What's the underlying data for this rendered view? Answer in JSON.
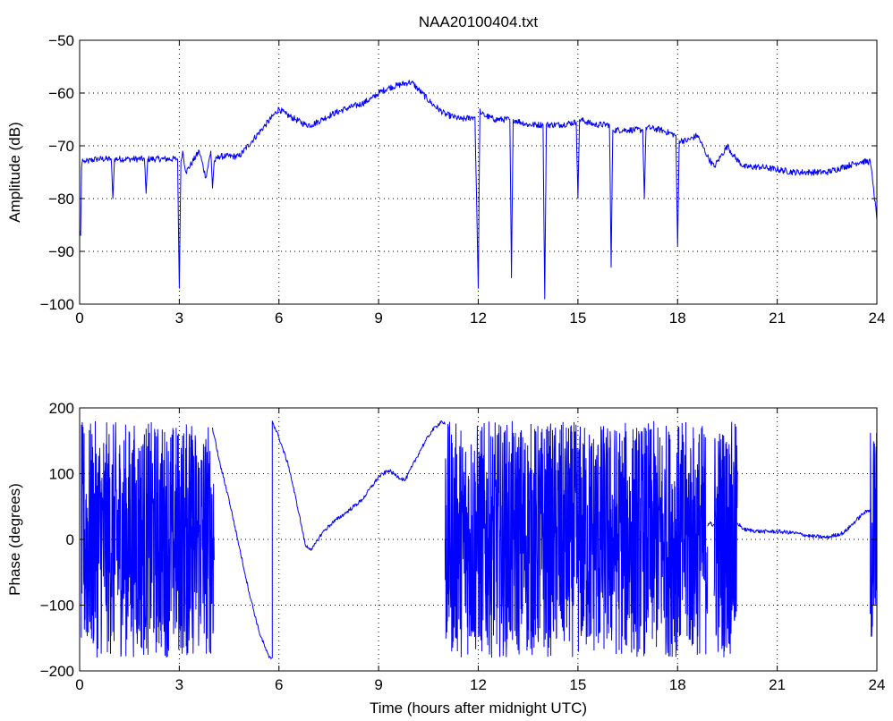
{
  "chart_data": [
    {
      "type": "line",
      "title": "NAA20100404.txt",
      "xlabel": "",
      "ylabel": "Amplitude (dB)",
      "xlim": [
        0,
        24
      ],
      "ylim": [
        -100,
        -50
      ],
      "x_ticks": [
        0,
        3,
        6,
        9,
        12,
        15,
        18,
        21,
        24
      ],
      "y_ticks": [
        -100,
        -90,
        -80,
        -70,
        -60,
        -50
      ],
      "x_tick_labels": [
        "0",
        "3",
        "6",
        "9",
        "12",
        "15",
        "18",
        "21",
        "24"
      ],
      "y_tick_labels": [
        "−100",
        "−90",
        "−80",
        "−70",
        "−60",
        "−50"
      ],
      "grid": true,
      "line_color": "#0000ff",
      "series": [
        {
          "x": [
            0.0,
            0.03,
            0.06,
            0.09,
            0.12,
            0.2,
            0.5,
            0.95,
            1.0,
            1.05,
            1.5,
            1.95,
            2.0,
            2.05,
            2.5,
            2.95,
            3.0,
            3.05,
            3.1,
            3.2,
            3.4,
            3.6,
            3.8,
            3.95,
            4.0,
            4.05,
            4.2,
            4.4,
            4.8,
            5.2,
            5.6,
            6.0,
            6.2,
            6.5,
            6.8,
            7.0,
            7.3,
            7.6,
            8.0,
            8.5,
            8.8,
            9.0,
            9.3,
            9.6,
            9.9,
            10.0,
            10.3,
            10.6,
            11.0,
            11.5,
            11.9,
            12.0,
            12.05,
            12.1,
            12.5,
            12.95,
            13.0,
            13.05,
            13.5,
            13.95,
            14.0,
            14.05,
            14.5,
            14.95,
            15.0,
            15.05,
            15.5,
            15.95,
            16.0,
            16.05,
            16.5,
            16.95,
            17.0,
            17.05,
            17.5,
            17.95,
            18.0,
            18.05,
            18.3,
            18.6,
            18.9,
            19.1,
            19.3,
            19.5,
            19.7,
            20.0,
            20.5,
            21.0,
            21.5,
            22.0,
            22.5,
            23.0,
            23.5,
            23.8,
            23.9,
            24.0
          ],
          "y": [
            -86,
            -87,
            -74,
            -72.5,
            -73,
            -73,
            -72.5,
            -72.5,
            -80,
            -72.5,
            -72.5,
            -72.5,
            -79,
            -72.5,
            -72.5,
            -72.5,
            -97,
            -73,
            -71,
            -75,
            -73,
            -71,
            -76,
            -71,
            -78,
            -73,
            -72,
            -72,
            -72,
            -69,
            -66,
            -63,
            -64,
            -65,
            -66,
            -66,
            -65,
            -64,
            -63,
            -62,
            -61,
            -60,
            -59,
            -58.5,
            -58,
            -58,
            -60,
            -62,
            -64,
            -65,
            -64.5,
            -97,
            -63,
            -64,
            -65,
            -65,
            -95,
            -65,
            -66,
            -66,
            -99,
            -66,
            -66,
            -65.5,
            -80,
            -65,
            -66,
            -66,
            -93,
            -67,
            -67,
            -67,
            -80,
            -66.5,
            -67,
            -68,
            -89,
            -69,
            -69,
            -68,
            -72,
            -74,
            -72,
            -70,
            -72,
            -74,
            -74,
            -74.5,
            -75,
            -75,
            -75,
            -74,
            -73,
            -73,
            -78,
            -84
          ]
        }
      ]
    },
    {
      "type": "line",
      "title": "",
      "xlabel": "Time (hours after midnight UTC)",
      "ylabel": "Phase (degrees)",
      "xlim": [
        0,
        24
      ],
      "ylim": [
        -200,
        200
      ],
      "x_ticks": [
        0,
        3,
        6,
        9,
        12,
        15,
        18,
        21,
        24
      ],
      "y_ticks": [
        -200,
        -100,
        0,
        100,
        200
      ],
      "x_tick_labels": [
        "0",
        "3",
        "6",
        "9",
        "12",
        "15",
        "18",
        "21",
        "24"
      ],
      "y_tick_labels": [
        "−200",
        "−100",
        "0",
        "100",
        "200"
      ],
      "grid": true,
      "line_color": "#0000ff",
      "wrapped_noise_segments": [
        [
          0.05,
          1.75
        ],
        [
          1.75,
          3.4
        ],
        [
          3.2,
          4.05
        ],
        [
          11.0,
          18.9
        ],
        [
          19.1,
          19.8
        ],
        [
          23.8,
          24.0
        ]
      ],
      "series": [
        {
          "x": [
            4.0,
            4.2,
            4.5,
            4.8,
            5.1,
            5.4,
            5.7,
            5.8,
            5.8,
            6.0,
            6.3,
            6.6,
            6.8,
            7.0,
            7.3,
            7.6,
            8.0,
            8.5,
            9.0,
            9.3,
            9.6,
            9.8,
            10.0,
            10.3,
            10.6,
            10.9,
            11.0
          ],
          "y": [
            170,
            120,
            60,
            -10,
            -80,
            -140,
            -180,
            -180,
            180,
            155,
            110,
            40,
            -10,
            -15,
            10,
            25,
            40,
            60,
            95,
            105,
            95,
            90,
            110,
            140,
            165,
            180,
            175
          ]
        },
        {
          "x": [
            18.9,
            19.0,
            19.05,
            19.1
          ],
          "y": [
            20,
            25,
            20,
            22
          ]
        },
        {
          "x": [
            19.8,
            20.0,
            20.5,
            21.0,
            21.5,
            22.0,
            22.5,
            23.0,
            23.3,
            23.6,
            23.8
          ],
          "y": [
            25,
            15,
            12,
            12,
            10,
            5,
            3,
            10,
            25,
            40,
            45
          ]
        }
      ]
    }
  ]
}
